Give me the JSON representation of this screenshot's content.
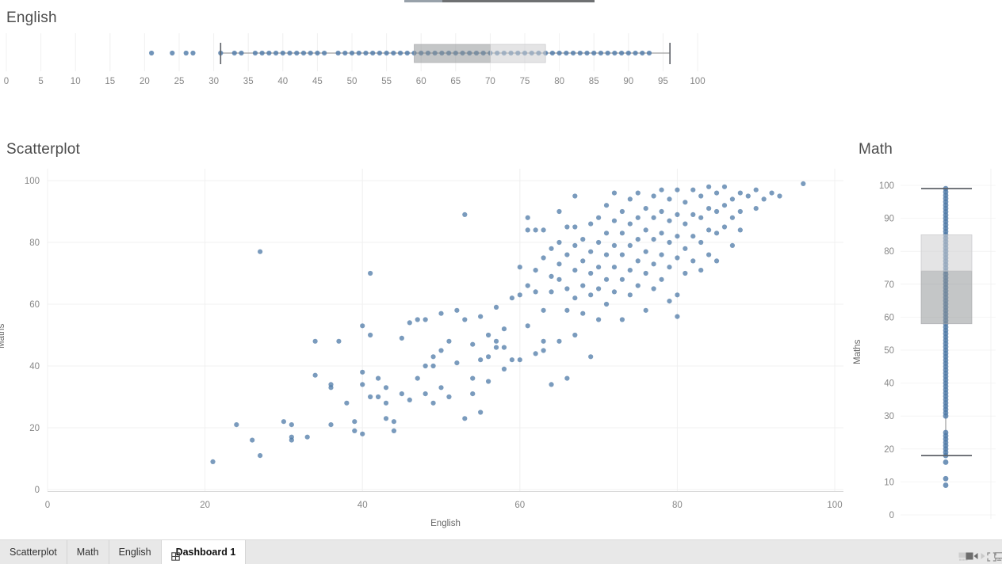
{
  "colors": {
    "mark": "#4e79a7",
    "box_dark_fill": "#8e9194",
    "box_light_fill": "#cdced0",
    "whisker": "#8a8a8a",
    "whisker_cap": "#5e6268",
    "gridline": "#f0f0f0",
    "tab_bar_bg": "#e8e8e8",
    "active_tab_bg": "#ffffff",
    "top_scrollbar_left": "#98a1aa",
    "top_scrollbar_right": "#6e7072"
  },
  "chart_data": [
    {
      "type": "boxplot",
      "orientation": "horizontal",
      "title": "English",
      "axis": {
        "min": 0,
        "max": 100,
        "step": 5
      },
      "box": {
        "whisker_low": 31,
        "q1": 59,
        "median": 70,
        "q3": 78,
        "whisker_high": 96
      },
      "outliers": [
        21,
        24,
        26,
        27
      ],
      "points": [
        21,
        24,
        26,
        27,
        31,
        33,
        34,
        36,
        37,
        38,
        39,
        40,
        41,
        42,
        43,
        44,
        45,
        46,
        48,
        49,
        50,
        51,
        52,
        53,
        54,
        55,
        56,
        57,
        58,
        59,
        60,
        61,
        62,
        63,
        64,
        65,
        66,
        67,
        68,
        69,
        70,
        71,
        72,
        73,
        74,
        75,
        76,
        77,
        78,
        79,
        80,
        81,
        82,
        83,
        84,
        85,
        86,
        87,
        88,
        89,
        90,
        91,
        92,
        93
      ]
    },
    {
      "type": "scatter",
      "title": "Scatterplot",
      "xlabel": "English",
      "ylabel": "Maths",
      "xlim": [
        0,
        100
      ],
      "ylim": [
        0,
        100
      ],
      "xticks": [
        0,
        20,
        40,
        60,
        80,
        100
      ],
      "yticks": [
        0,
        20,
        40,
        60,
        80,
        100
      ],
      "grid": true,
      "points": [
        [
          21,
          9
        ],
        [
          24,
          21
        ],
        [
          26,
          16
        ],
        [
          27,
          11
        ],
        [
          27,
          77
        ],
        [
          30,
          22
        ],
        [
          31,
          21
        ],
        [
          31,
          17
        ],
        [
          31,
          16
        ],
        [
          33,
          17
        ],
        [
          34,
          48
        ],
        [
          34,
          37
        ],
        [
          36,
          34
        ],
        [
          36,
          33
        ],
        [
          36,
          21
        ],
        [
          37,
          48
        ],
        [
          38,
          28
        ],
        [
          39,
          22
        ],
        [
          39,
          19
        ],
        [
          40,
          53
        ],
        [
          40,
          38
        ],
        [
          40,
          34
        ],
        [
          40,
          18
        ],
        [
          41,
          70
        ],
        [
          41,
          50
        ],
        [
          41,
          30
        ],
        [
          42,
          36
        ],
        [
          42,
          30
        ],
        [
          43,
          33
        ],
        [
          43,
          28
        ],
        [
          43,
          23
        ],
        [
          44,
          22
        ],
        [
          44,
          19
        ],
        [
          45,
          49
        ],
        [
          45,
          31
        ],
        [
          46,
          54
        ],
        [
          46,
          29
        ],
        [
          47,
          36
        ],
        [
          47,
          55
        ],
        [
          48,
          40
        ],
        [
          48,
          55
        ],
        [
          48,
          31
        ],
        [
          49,
          43
        ],
        [
          49,
          40
        ],
        [
          49,
          28
        ],
        [
          50,
          57
        ],
        [
          50,
          45
        ],
        [
          50,
          33
        ],
        [
          51,
          48
        ],
        [
          51,
          30
        ],
        [
          52,
          58
        ],
        [
          52,
          41
        ],
        [
          53,
          89
        ],
        [
          53,
          55
        ],
        [
          53,
          23
        ],
        [
          54,
          47
        ],
        [
          54,
          36
        ],
        [
          54,
          31
        ],
        [
          55,
          56
        ],
        [
          55,
          42
        ],
        [
          55,
          25
        ],
        [
          56,
          50
        ],
        [
          56,
          43
        ],
        [
          56,
          35
        ],
        [
          57,
          59
        ],
        [
          57,
          48
        ],
        [
          57,
          46
        ],
        [
          58,
          52
        ],
        [
          58,
          46
        ],
        [
          58,
          39
        ],
        [
          59,
          62
        ],
        [
          59,
          42
        ],
        [
          60,
          72
        ],
        [
          60,
          63
        ],
        [
          60,
          42
        ],
        [
          61,
          88
        ],
        [
          61,
          84
        ],
        [
          61,
          66
        ],
        [
          61,
          53
        ],
        [
          62,
          84
        ],
        [
          62,
          71
        ],
        [
          62,
          64
        ],
        [
          62,
          44
        ],
        [
          63,
          84
        ],
        [
          63,
          75
        ],
        [
          63,
          58
        ],
        [
          63,
          48
        ],
        [
          63,
          45
        ],
        [
          64,
          78
        ],
        [
          64,
          69
        ],
        [
          64,
          64
        ],
        [
          64,
          34
        ],
        [
          65,
          90
        ],
        [
          65,
          80
        ],
        [
          65,
          73
        ],
        [
          65,
          68
        ],
        [
          65,
          48
        ],
        [
          66,
          85
        ],
        [
          66,
          76
        ],
        [
          66,
          65
        ],
        [
          66,
          58
        ],
        [
          66,
          36
        ],
        [
          67,
          95
        ],
        [
          67,
          85
        ],
        [
          67,
          79
        ],
        [
          67,
          71
        ],
        [
          67,
          62
        ],
        [
          67,
          50
        ],
        [
          68,
          81
        ],
        [
          68,
          74
        ],
        [
          68,
          66
        ],
        [
          68,
          57
        ],
        [
          69,
          86
        ],
        [
          69,
          77
        ],
        [
          69,
          70
        ],
        [
          69,
          63
        ],
        [
          69,
          43
        ],
        [
          70,
          88
        ],
        [
          70,
          80
        ],
        [
          70,
          72
        ],
        [
          70,
          65
        ],
        [
          70,
          55
        ],
        [
          71,
          92
        ],
        [
          71,
          83
        ],
        [
          71,
          76
        ],
        [
          71,
          68
        ],
        [
          71,
          60
        ],
        [
          72,
          96
        ],
        [
          72,
          87
        ],
        [
          72,
          79
        ],
        [
          72,
          72
        ],
        [
          72,
          64
        ],
        [
          73,
          90
        ],
        [
          73,
          83
        ],
        [
          73,
          76
        ],
        [
          73,
          68
        ],
        [
          73,
          55
        ],
        [
          74,
          94
        ],
        [
          74,
          86
        ],
        [
          74,
          79
        ],
        [
          74,
          71
        ],
        [
          74,
          63
        ],
        [
          75,
          96
        ],
        [
          75,
          88
        ],
        [
          75,
          81
        ],
        [
          75,
          74
        ],
        [
          75,
          66
        ],
        [
          76,
          91
        ],
        [
          76,
          84
        ],
        [
          76,
          77
        ],
        [
          76,
          70
        ],
        [
          76,
          58
        ],
        [
          77,
          95
        ],
        [
          77,
          88
        ],
        [
          77,
          81
        ],
        [
          77,
          73
        ],
        [
          77,
          65
        ],
        [
          78,
          97
        ],
        [
          78,
          90
        ],
        [
          78,
          83
        ],
        [
          78,
          76
        ],
        [
          78,
          68
        ],
        [
          79,
          94
        ],
        [
          79,
          87
        ],
        [
          79,
          80
        ],
        [
          79,
          72
        ],
        [
          79,
          61
        ],
        [
          80,
          97
        ],
        [
          80,
          89
        ],
        [
          80,
          82
        ],
        [
          80,
          75
        ],
        [
          80,
          63
        ],
        [
          80,
          56
        ],
        [
          81,
          93
        ],
        [
          81,
          86
        ],
        [
          81,
          78
        ],
        [
          81,
          70
        ],
        [
          82,
          97
        ],
        [
          82,
          89
        ],
        [
          82,
          82
        ],
        [
          82,
          74
        ],
        [
          83,
          95
        ],
        [
          83,
          88
        ],
        [
          83,
          80
        ],
        [
          83,
          71
        ],
        [
          84,
          98
        ],
        [
          84,
          91
        ],
        [
          84,
          84
        ],
        [
          84,
          76
        ],
        [
          85,
          96
        ],
        [
          85,
          90
        ],
        [
          85,
          83
        ],
        [
          85,
          74
        ],
        [
          86,
          98
        ],
        [
          86,
          92
        ],
        [
          86,
          85
        ],
        [
          87,
          94
        ],
        [
          87,
          88
        ],
        [
          87,
          79
        ],
        [
          88,
          96
        ],
        [
          88,
          90
        ],
        [
          88,
          84
        ],
        [
          89,
          95
        ],
        [
          90,
          97
        ],
        [
          90,
          91
        ],
        [
          91,
          94
        ],
        [
          92,
          96
        ],
        [
          93,
          95
        ],
        [
          96,
          99
        ]
      ]
    },
    {
      "type": "boxplot",
      "orientation": "vertical",
      "title": "Math",
      "ylabel": "Maths",
      "axis": {
        "min": 0,
        "max": 100,
        "step": 10
      },
      "box": {
        "whisker_low": 18,
        "q1": 58,
        "median": 74,
        "q3": 85,
        "whisker_high": 99
      },
      "outliers": [
        9,
        11,
        16
      ],
      "points": [
        9,
        11,
        16,
        18,
        19,
        20,
        21,
        22,
        23,
        24,
        25,
        30,
        31,
        32,
        33,
        34,
        35,
        36,
        37,
        38,
        39,
        40,
        41,
        42,
        43,
        44,
        45,
        46,
        47,
        48,
        49,
        50,
        51,
        52,
        53,
        54,
        55,
        56,
        57,
        58,
        59,
        60,
        61,
        62,
        63,
        64,
        65,
        66,
        67,
        68,
        69,
        70,
        71,
        72,
        73,
        74,
        75,
        76,
        77,
        78,
        79,
        80,
        81,
        82,
        83,
        84,
        85,
        86,
        87,
        88,
        89,
        90,
        91,
        92,
        93,
        94,
        95,
        96,
        97,
        98,
        99
      ]
    }
  ],
  "tabs": [
    {
      "label": "Scatterplot",
      "active": false
    },
    {
      "label": "Math",
      "active": false
    },
    {
      "label": "English",
      "active": false
    },
    {
      "label": "Dashboard 1",
      "active": true,
      "icon": "dashboard-grid-icon"
    }
  ],
  "status_bar": {
    "icons": [
      "filmstrip-icon",
      "show-tabs-icon",
      "previous-sheet-icon",
      "next-sheet-icon",
      "fullscreen-icon",
      "presentation-mode-icon"
    ]
  }
}
